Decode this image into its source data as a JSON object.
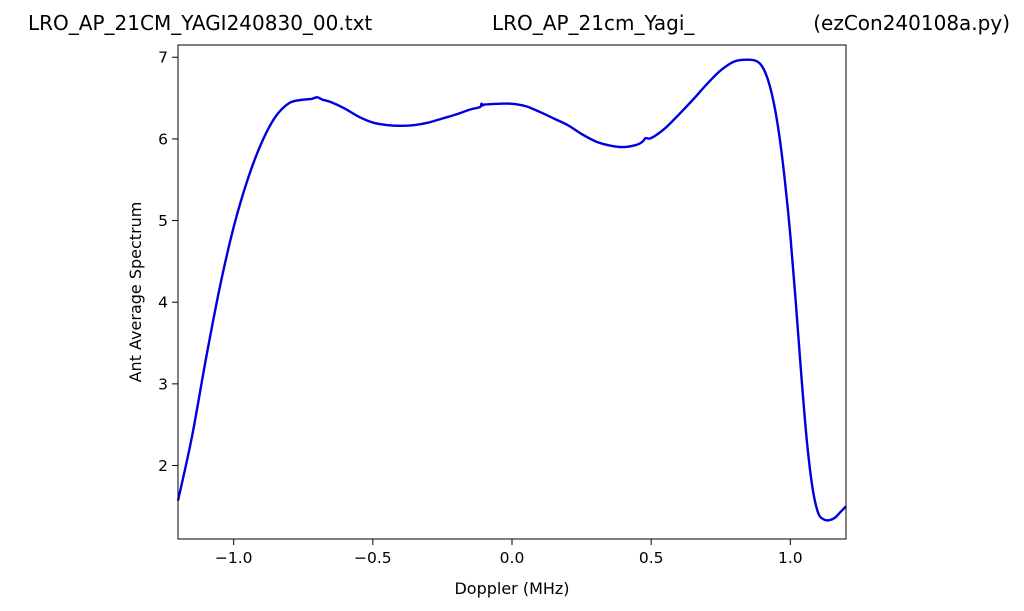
{
  "chart_data": {
    "type": "line",
    "titles": {
      "left": "LRO_AP_21CM_YAGI240830_00.txt",
      "center": "LRO_AP_21cm_Yagi_",
      "right": "(ezCon240108a.py)"
    },
    "xlabel": "Doppler (MHz)",
    "ylabel": "Ant Average Spectrum",
    "xlim": [
      -1.2,
      1.2
    ],
    "ylim": [
      1.1,
      7.15
    ],
    "xticks": [
      {
        "value": -1.0,
        "label": "−1.0"
      },
      {
        "value": -0.5,
        "label": "−0.5"
      },
      {
        "value": 0.0,
        "label": "0.0"
      },
      {
        "value": 0.5,
        "label": "0.5"
      },
      {
        "value": 1.0,
        "label": "1.0"
      }
    ],
    "yticks": [
      {
        "value": 2,
        "label": "2"
      },
      {
        "value": 3,
        "label": "3"
      },
      {
        "value": 4,
        "label": "4"
      },
      {
        "value": 5,
        "label": "5"
      },
      {
        "value": 6,
        "label": "6"
      },
      {
        "value": 7,
        "label": "7"
      }
    ],
    "grid": false,
    "series": [
      {
        "color": "#0000dd",
        "x": [
          -1.2,
          -1.15,
          -1.1,
          -1.05,
          -1.0,
          -0.95,
          -0.9,
          -0.85,
          -0.8,
          -0.75,
          -0.72,
          -0.7,
          -0.68,
          -0.65,
          -0.6,
          -0.55,
          -0.5,
          -0.45,
          -0.4,
          -0.35,
          -0.3,
          -0.25,
          -0.2,
          -0.15,
          -0.115,
          -0.11,
          -0.105,
          -0.1,
          -0.05,
          0.0,
          0.05,
          0.1,
          0.15,
          0.2,
          0.25,
          0.3,
          0.35,
          0.4,
          0.45,
          0.47,
          0.48,
          0.5,
          0.55,
          0.6,
          0.65,
          0.7,
          0.75,
          0.8,
          0.85,
          0.88,
          0.9,
          0.92,
          0.94,
          0.96,
          0.98,
          1.0,
          1.02,
          1.04,
          1.06,
          1.08,
          1.1,
          1.12,
          1.14,
          1.16,
          1.18,
          1.2
        ],
        "y": [
          1.57,
          2.35,
          3.3,
          4.18,
          4.92,
          5.5,
          5.95,
          6.27,
          6.44,
          6.48,
          6.49,
          6.51,
          6.48,
          6.45,
          6.37,
          6.27,
          6.2,
          6.17,
          6.16,
          6.17,
          6.2,
          6.25,
          6.3,
          6.36,
          6.39,
          6.43,
          6.41,
          6.42,
          6.43,
          6.43,
          6.4,
          6.33,
          6.25,
          6.17,
          6.06,
          5.97,
          5.92,
          5.9,
          5.93,
          5.97,
          6.01,
          6.01,
          6.13,
          6.3,
          6.48,
          6.67,
          6.84,
          6.95,
          6.97,
          6.95,
          6.88,
          6.72,
          6.45,
          6.05,
          5.5,
          4.82,
          3.98,
          3.08,
          2.28,
          1.72,
          1.42,
          1.34,
          1.33,
          1.36,
          1.43,
          1.5
        ]
      }
    ]
  }
}
